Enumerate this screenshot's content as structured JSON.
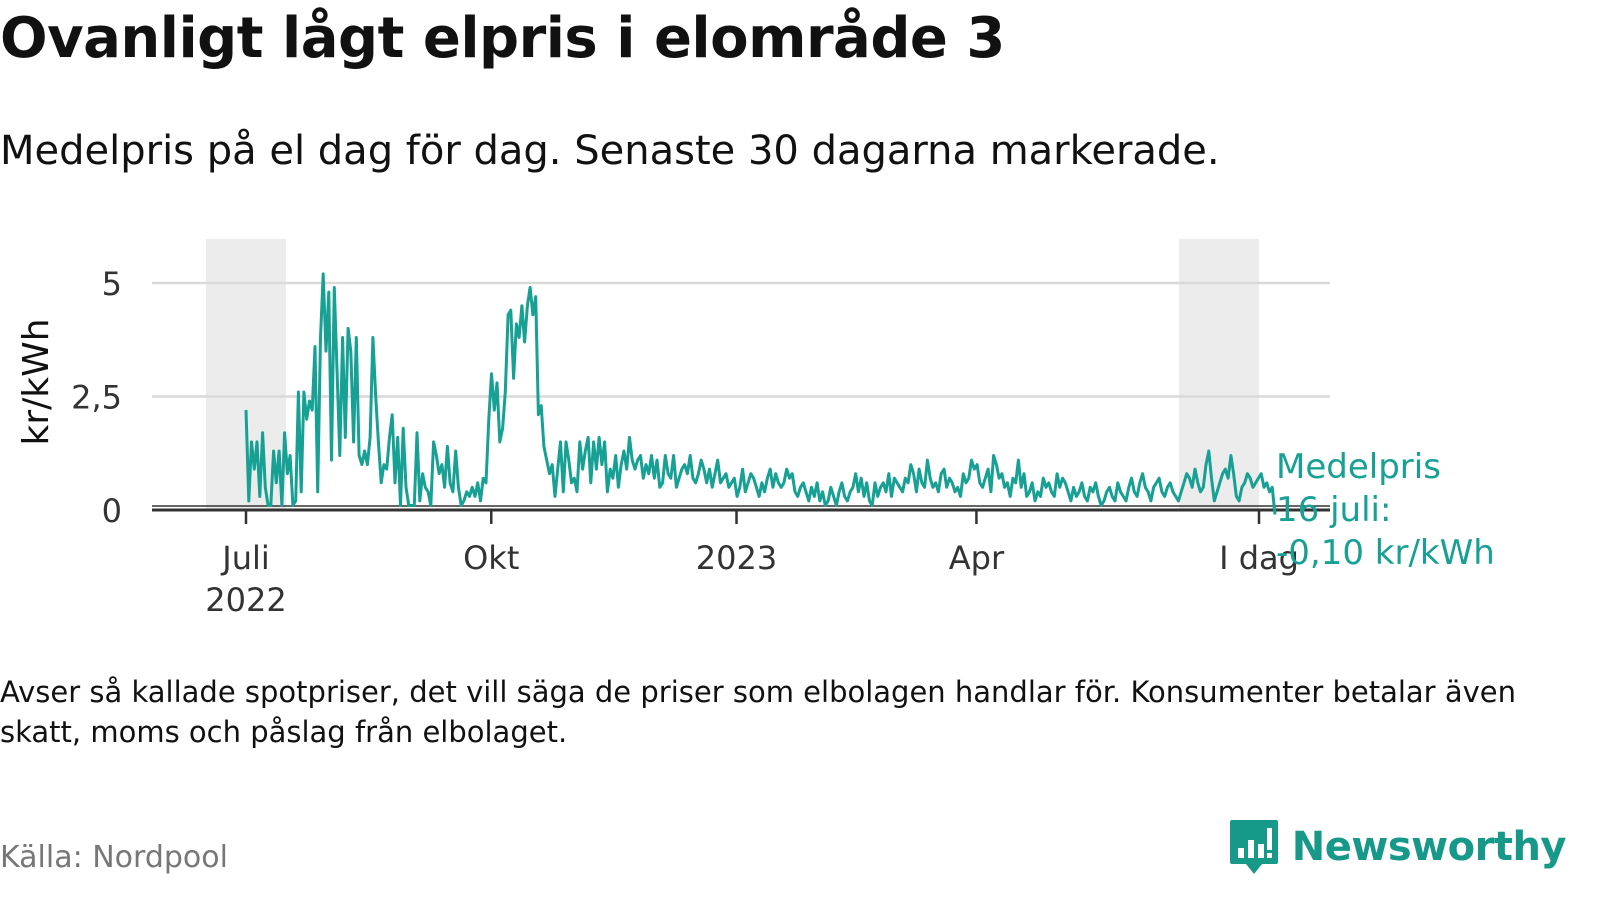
{
  "header": {
    "title": "Ovanligt lågt elpris i elområde 3",
    "subtitle": "Medelpris på el dag för dag.  Senaste 30 dagarna markerade."
  },
  "footer": {
    "note": "Avser så kallade spotpriser, det vill säga de priser som elbolagen handlar för. Konsumenter betalar även skatt, moms och påslag från elbolaget.",
    "source": "Källa: Nordpool",
    "brand": "Newsworthy"
  },
  "colors": {
    "line": "#17a094",
    "shade": "#ececec",
    "grid": "#d9d9d9",
    "axis": "#333333",
    "brand": "#17998a"
  },
  "chart_data": {
    "type": "line",
    "ylabel": "kr/kWh",
    "ylim": [
      0,
      5.5
    ],
    "yticks": [
      {
        "value": 0,
        "label": "0"
      },
      {
        "value": 2.5,
        "label": "2,5"
      },
      {
        "value": 5,
        "label": "5"
      }
    ],
    "x_domain_days": [
      0,
      386
    ],
    "xticks": [
      {
        "day": 0,
        "label": "Juli",
        "label2": "2022"
      },
      {
        "day": 92,
        "label": "Okt",
        "label2": ""
      },
      {
        "day": 184,
        "label": "2023",
        "label2": ""
      },
      {
        "day": 274,
        "label": "Apr",
        "label2": ""
      },
      {
        "day": 380,
        "label": "I dag",
        "label2": ""
      }
    ],
    "shaded_ranges": [
      {
        "from_day": -15,
        "to_day": 15
      },
      {
        "from_day": 350,
        "to_day": 380
      }
    ],
    "annotation": {
      "lines": [
        "Medelpris",
        "16 juli:",
        "-0,10 kr/kWh"
      ],
      "day": 380,
      "value": -0.1
    },
    "series": [
      {
        "name": "Medelpris",
        "values": [
          2.2,
          0.2,
          1.5,
          0.9,
          1.5,
          0.3,
          1.7,
          0.5,
          0.1,
          0.1,
          1.3,
          0.6,
          1.3,
          0.1,
          1.7,
          0.8,
          1.2,
          0.1,
          0.2,
          2.6,
          0.4,
          2.6,
          2.0,
          2.4,
          2.2,
          3.6,
          0.4,
          3.8,
          5.2,
          3.5,
          4.8,
          1.1,
          4.9,
          3.1,
          1.2,
          3.8,
          1.6,
          4.0,
          3.5,
          1.5,
          3.8,
          1.2,
          1.0,
          1.3,
          1.0,
          1.6,
          3.8,
          2.5,
          1.5,
          0.6,
          1.0,
          0.9,
          1.6,
          2.1,
          0.6,
          1.6,
          0.1,
          1.8,
          0.5,
          0.1,
          0.1,
          0.1,
          1.7,
          0.2,
          0.8,
          0.5,
          0.4,
          0.1,
          1.5,
          1.2,
          0.8,
          1.0,
          0.5,
          1.4,
          0.6,
          0.4,
          1.3,
          0.5,
          0.1,
          0.2,
          0.4,
          0.3,
          0.5,
          0.3,
          0.6,
          0.2,
          0.7,
          0.6,
          2.0,
          3.0,
          2.2,
          2.8,
          1.5,
          1.8,
          2.6,
          4.3,
          4.4,
          2.9,
          4.1,
          3.8,
          4.5,
          3.7,
          4.5,
          4.9,
          4.3,
          4.7,
          2.1,
          2.3,
          1.4,
          1.1,
          0.8,
          1.0,
          0.3,
          0.9,
          1.5,
          0.4,
          1.5,
          1.1,
          0.6,
          0.7,
          0.4,
          1.5,
          0.9,
          1.3,
          1.6,
          0.6,
          1.5,
          0.9,
          1.6,
          1.0,
          1.5,
          0.4,
          0.9,
          0.7,
          1.2,
          0.5,
          1.0,
          1.3,
          0.9,
          1.6,
          1.1,
          0.9,
          1.1,
          1.2,
          0.7,
          1.0,
          0.8,
          1.2,
          0.7,
          1.1,
          0.5,
          0.6,
          1.2,
          0.8,
          0.7,
          1.2,
          0.5,
          0.7,
          0.9,
          1.0,
          0.8,
          1.2,
          0.7,
          0.6,
          0.8,
          1.1,
          0.9,
          0.6,
          0.9,
          0.5,
          0.8,
          1.1,
          0.6,
          0.7,
          0.8,
          0.5,
          0.6,
          0.7,
          0.3,
          0.5,
          0.9,
          0.4,
          0.6,
          0.8,
          0.7,
          0.5,
          0.3,
          0.6,
          0.4,
          0.7,
          0.9,
          0.5,
          0.8,
          0.6,
          0.5,
          0.6,
          0.9,
          0.7,
          0.8,
          0.4,
          0.3,
          0.5,
          0.6,
          0.4,
          0.2,
          0.5,
          0.3,
          0.6,
          0.2,
          0.4,
          0.1,
          0.2,
          0.5,
          0.3,
          0.1,
          0.4,
          0.6,
          0.3,
          0.2,
          0.4,
          0.5,
          0.8,
          0.4,
          0.7,
          0.3,
          0.6,
          0.2,
          0.1,
          0.6,
          0.3,
          0.5,
          0.6,
          0.4,
          0.8,
          0.3,
          0.7,
          0.6,
          0.5,
          0.4,
          0.7,
          0.6,
          1.0,
          0.8,
          0.4,
          0.9,
          0.6,
          0.5,
          1.1,
          0.7,
          0.5,
          0.6,
          0.4,
          0.8,
          0.9,
          0.5,
          0.7,
          0.6,
          0.4,
          0.5,
          0.3,
          0.8,
          0.6,
          0.7,
          1.1,
          0.9,
          1.0,
          0.6,
          0.5,
          0.7,
          0.9,
          0.4,
          1.2,
          1.0,
          0.7,
          0.8,
          0.5,
          0.6,
          0.3,
          0.7,
          0.6,
          1.1,
          0.5,
          0.8,
          0.3,
          0.4,
          0.6,
          0.2,
          0.4,
          0.3,
          0.7,
          0.5,
          0.6,
          0.4,
          0.3,
          0.8,
          0.5,
          0.7,
          0.6,
          0.4,
          0.2,
          0.5,
          0.3,
          0.4,
          0.6,
          0.3,
          0.2,
          0.5,
          0.4,
          0.6,
          0.3,
          0.1,
          0.2,
          0.4,
          0.5,
          0.3,
          0.2,
          0.6,
          0.4,
          0.3,
          0.2,
          0.5,
          0.7,
          0.4,
          0.3,
          0.6,
          0.8,
          0.5,
          0.4,
          0.2,
          0.5,
          0.6,
          0.7,
          0.4,
          0.3,
          0.5,
          0.6,
          0.4,
          0.3,
          0.2,
          0.4,
          0.6,
          0.8,
          0.7,
          0.5,
          0.9,
          0.6,
          0.4,
          0.5,
          1.0,
          1.3,
          0.7,
          0.2,
          0.4,
          0.6,
          0.8,
          0.9,
          0.7,
          1.2,
          0.8,
          0.3,
          0.2,
          0.5,
          0.6,
          0.8,
          0.7,
          0.5,
          0.6,
          0.7,
          0.8,
          0.5,
          0.6,
          0.4,
          0.5,
          -0.1
        ]
      }
    ]
  }
}
